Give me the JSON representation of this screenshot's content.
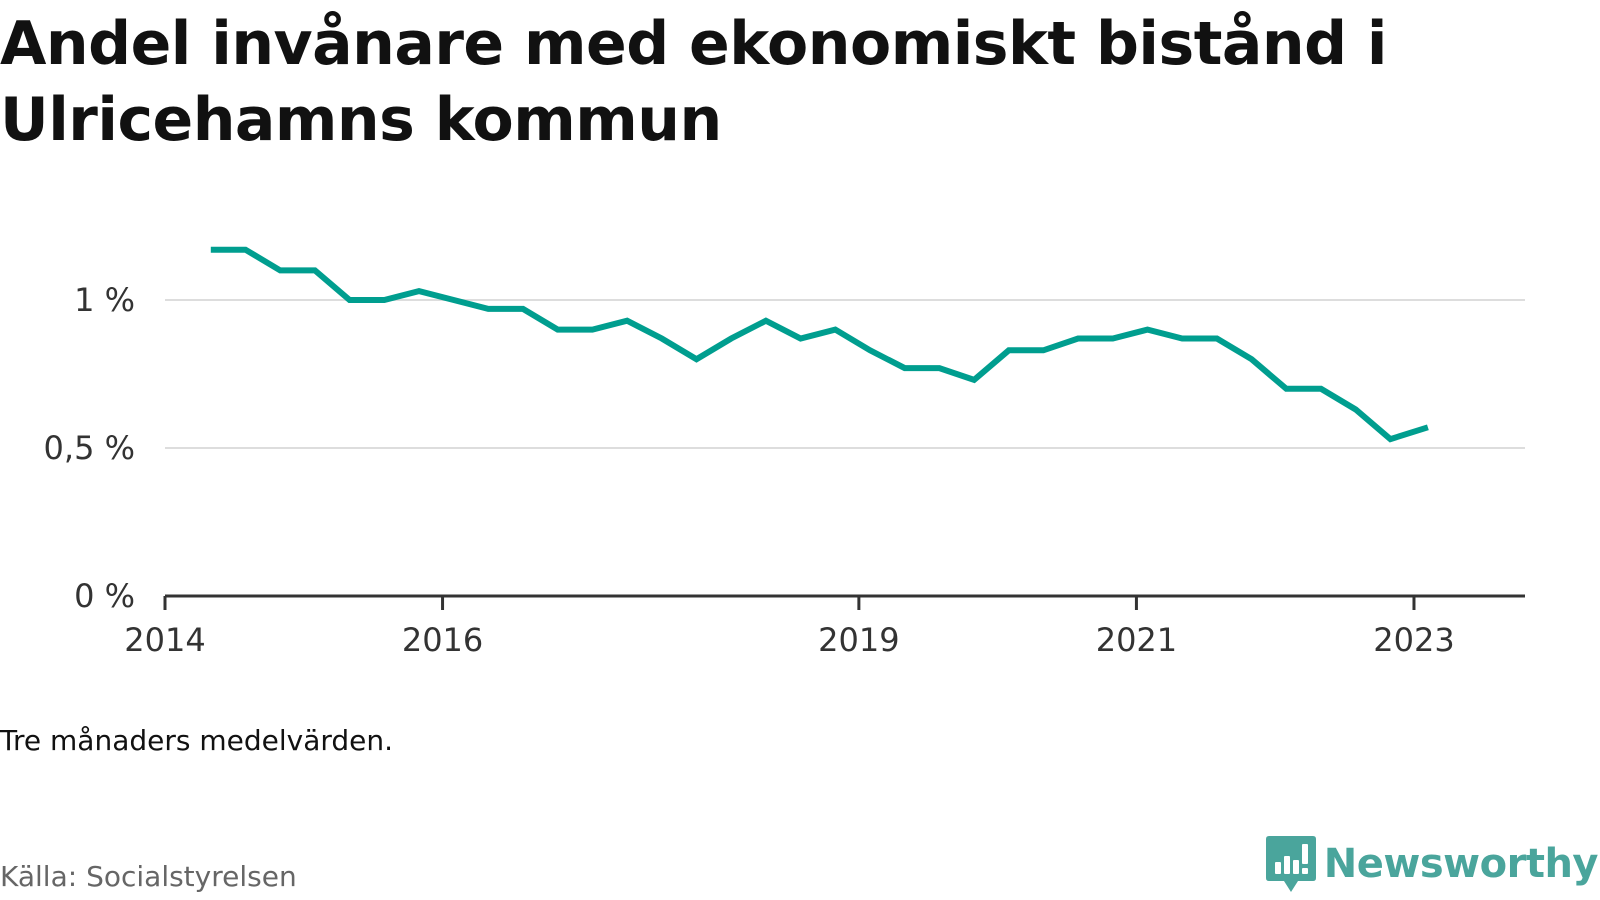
{
  "title": "Andel invånare med ekonomiskt bistånd i Ulricehamns kommun",
  "note": "Tre månaders medelvärden.",
  "source": "Källa: Socialstyrelsen",
  "brand": {
    "name": "Newsworthy",
    "icon": "newsworthy-logo-icon",
    "color": "#4aa59c"
  },
  "colors": {
    "line": "#009e8f",
    "grid": "#dddddd",
    "axis": "#333333"
  },
  "chart_data": {
    "type": "line",
    "title": "Andel invånare med ekonomiskt bistånd i Ulricehamns kommun",
    "xlabel": "",
    "ylabel": "",
    "xlim": [
      2014.0,
      2023.8
    ],
    "ylim": [
      0,
      1.0
    ],
    "x_ticks": [
      {
        "value": 2014,
        "label": "2014"
      },
      {
        "value": 2016,
        "label": "2016"
      },
      {
        "value": 2019,
        "label": "2019"
      },
      {
        "value": 2021,
        "label": "2021"
      },
      {
        "value": 2023,
        "label": "2023"
      }
    ],
    "y_ticks": [
      {
        "value": 0,
        "label": "0 %"
      },
      {
        "value": 0.5,
        "label": "0,5 %"
      },
      {
        "value": 1.0,
        "label": "1 %"
      }
    ],
    "grid": true,
    "series": [
      {
        "name": "Andel invånare med ekonomiskt bistånd",
        "x": [
          2014.33,
          2014.58,
          2014.83,
          2015.08,
          2015.33,
          2015.58,
          2015.83,
          2016.08,
          2016.33,
          2016.58,
          2016.83,
          2017.08,
          2017.33,
          2017.58,
          2017.83,
          2018.08,
          2018.33,
          2018.58,
          2018.83,
          2019.08,
          2019.33,
          2019.58,
          2019.83,
          2020.08,
          2020.33,
          2020.58,
          2020.83,
          2021.08,
          2021.33,
          2021.58,
          2021.83,
          2022.08,
          2022.33,
          2022.58,
          2022.83,
          2023.1
        ],
        "values": [
          1.17,
          1.17,
          1.1,
          1.1,
          1.0,
          1.0,
          1.03,
          1.0,
          0.97,
          0.97,
          0.9,
          0.9,
          0.93,
          0.87,
          0.8,
          0.87,
          0.93,
          0.87,
          0.9,
          0.83,
          0.77,
          0.77,
          0.73,
          0.83,
          0.83,
          0.87,
          0.87,
          0.9,
          0.87,
          0.87,
          0.8,
          0.7,
          0.7,
          0.63,
          0.53,
          0.57
        ]
      }
    ]
  }
}
